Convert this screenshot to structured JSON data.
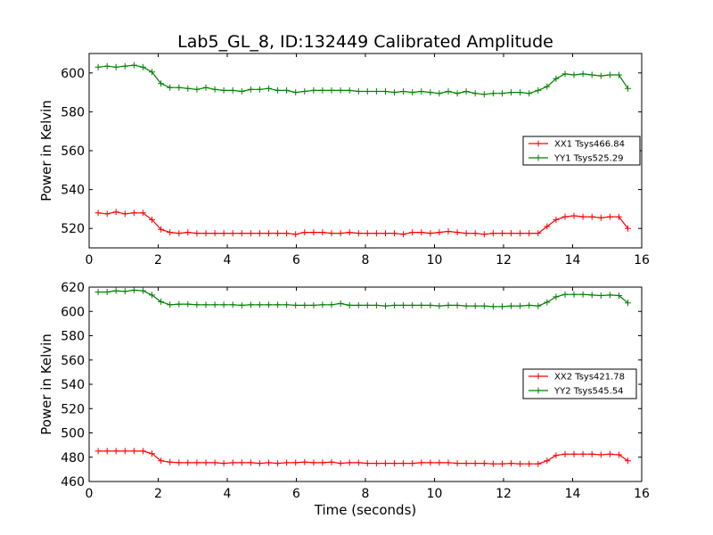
{
  "figure": {
    "title": "Lab5_GL_8, ID:132449 Calibrated Amplitude"
  },
  "chart_data": [
    {
      "type": "line",
      "title": "Lab5_GL_8, ID:132449 Calibrated Amplitude",
      "xlabel": "",
      "ylabel": "Power in Kelvin",
      "xlim": [
        0,
        16
      ],
      "ylim": [
        510,
        610
      ],
      "xticks": [
        0,
        2,
        4,
        6,
        8,
        10,
        12,
        14,
        16
      ],
      "yticks": [
        520,
        540,
        560,
        580,
        600
      ],
      "grid": false,
      "legend": "center-right",
      "x": [
        0.26,
        0.52,
        0.78,
        1.04,
        1.3,
        1.56,
        1.82,
        2.08,
        2.34,
        2.6,
        2.86,
        3.12,
        3.38,
        3.64,
        3.9,
        4.16,
        4.42,
        4.68,
        4.94,
        5.2,
        5.46,
        5.72,
        5.98,
        6.24,
        6.5,
        6.76,
        7.02,
        7.28,
        7.54,
        7.8,
        8.06,
        8.32,
        8.58,
        8.84,
        9.1,
        9.36,
        9.62,
        9.88,
        10.14,
        10.4,
        10.66,
        10.92,
        11.18,
        11.44,
        11.7,
        11.96,
        12.22,
        12.48,
        12.74,
        13.0,
        13.26,
        13.52,
        13.78,
        14.04,
        14.3,
        14.56,
        14.82,
        15.08,
        15.34,
        15.6
      ],
      "series": [
        {
          "name": "XX1 Tsys466.84",
          "color": "#ff0000",
          "values": [
            528,
            527.5,
            528.5,
            527.5,
            528,
            528,
            524.5,
            519.5,
            518,
            517.5,
            518,
            517.5,
            517.5,
            517.5,
            517.5,
            517.5,
            517.5,
            517.5,
            517.5,
            517.5,
            517.5,
            517.5,
            517,
            518,
            518,
            518,
            517.5,
            517.5,
            518,
            517.5,
            517.5,
            517.5,
            517.5,
            517.5,
            517,
            518,
            518,
            517.5,
            518,
            518.5,
            518,
            517.5,
            517.5,
            517,
            517.5,
            517.5,
            517.5,
            517.5,
            517.5,
            517.5,
            521,
            524.5,
            526,
            526.5,
            526,
            526,
            525.5,
            526,
            526,
            520
          ]
        },
        {
          "name": "YY1 Tsys525.29",
          "color": "#008000",
          "values": [
            603,
            603.5,
            603,
            603.5,
            604,
            603,
            600.5,
            594.5,
            592.5,
            592.5,
            592,
            591.5,
            592.5,
            591.5,
            591,
            591,
            590.5,
            591.5,
            591.5,
            592,
            591,
            591,
            590,
            590.5,
            591,
            591,
            591,
            591,
            591,
            590.5,
            590.5,
            590.5,
            590.5,
            590,
            590.5,
            590,
            590.5,
            590,
            589.5,
            590.5,
            589.5,
            590.5,
            589.5,
            589,
            589.5,
            589.5,
            590,
            590,
            589.5,
            591,
            593,
            597,
            599.5,
            599,
            599.5,
            599,
            598.5,
            599,
            599,
            592
          ]
        }
      ]
    },
    {
      "type": "line",
      "title": "",
      "xlabel": "Time (seconds)",
      "ylabel": "Power in Kelvin",
      "xlim": [
        0,
        16
      ],
      "ylim": [
        460,
        620
      ],
      "xticks": [
        0,
        2,
        4,
        6,
        8,
        10,
        12,
        14,
        16
      ],
      "yticks": [
        460,
        480,
        500,
        520,
        540,
        560,
        580,
        600,
        620
      ],
      "grid": false,
      "legend": "center-right",
      "x": [
        0.26,
        0.52,
        0.78,
        1.04,
        1.3,
        1.56,
        1.82,
        2.08,
        2.34,
        2.6,
        2.86,
        3.12,
        3.38,
        3.64,
        3.9,
        4.16,
        4.42,
        4.68,
        4.94,
        5.2,
        5.46,
        5.72,
        5.98,
        6.24,
        6.5,
        6.76,
        7.02,
        7.28,
        7.54,
        7.8,
        8.06,
        8.32,
        8.58,
        8.84,
        9.1,
        9.36,
        9.62,
        9.88,
        10.14,
        10.4,
        10.66,
        10.92,
        11.18,
        11.44,
        11.7,
        11.96,
        12.22,
        12.48,
        12.74,
        13.0,
        13.26,
        13.52,
        13.78,
        14.04,
        14.3,
        14.56,
        14.82,
        15.08,
        15.34,
        15.6
      ],
      "series": [
        {
          "name": "XX2 Tsys421.78",
          "color": "#ff0000",
          "values": [
            485,
            485,
            485,
            485,
            485,
            485,
            483,
            477,
            476,
            475.5,
            475.5,
            475.5,
            475.5,
            475.5,
            475,
            475.5,
            475.5,
            475.5,
            475,
            475.5,
            475,
            475.5,
            475.5,
            476,
            475.5,
            475.5,
            476,
            475,
            475.5,
            475.5,
            475,
            475,
            475,
            475,
            475,
            475,
            475.5,
            475.5,
            475.5,
            475.5,
            475,
            475,
            475,
            475,
            474.5,
            474.5,
            475,
            474.5,
            474.5,
            474.5,
            477,
            481.5,
            482.5,
            482.5,
            482.5,
            482.5,
            482,
            482.5,
            482,
            477
          ]
        },
        {
          "name": "YY2 Tsys545.54",
          "color": "#008000",
          "values": [
            616,
            616,
            617,
            616.5,
            617.5,
            617,
            613.5,
            608,
            605.5,
            606,
            606,
            605.5,
            605.5,
            605.5,
            605.5,
            605.5,
            605,
            605.5,
            605.5,
            605.5,
            605.5,
            605.5,
            605,
            605,
            605,
            605.5,
            605.5,
            606.5,
            605,
            605,
            605,
            605,
            604.5,
            605,
            605,
            605,
            605,
            605,
            604.5,
            605,
            605,
            604.5,
            604.5,
            604.5,
            604,
            604,
            604.5,
            604.5,
            605,
            604.5,
            607.5,
            612,
            614,
            614,
            614,
            613.5,
            613,
            613.5,
            613,
            607
          ]
        }
      ]
    }
  ]
}
